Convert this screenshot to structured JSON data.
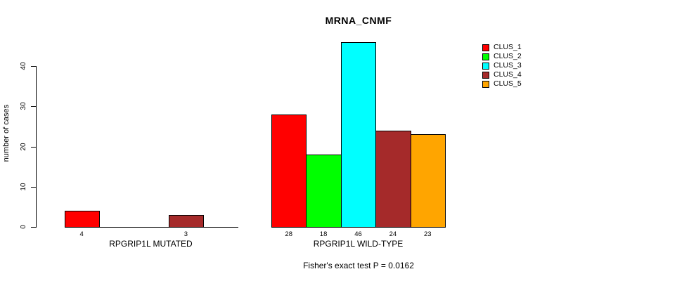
{
  "title": "MRNA_CNMF",
  "subtitle": "Fisher's exact test P = 0.0162",
  "chart_data": {
    "type": "bar",
    "title": "MRNA_CNMF",
    "xlabel": "",
    "ylabel": "number of cases",
    "ylim": [
      0,
      46
    ],
    "yticks": [
      0,
      10,
      20,
      30,
      40
    ],
    "grid": false,
    "legend_position": "top-right",
    "series": [
      {
        "name": "CLUS_1",
        "color": "#FF0000"
      },
      {
        "name": "CLUS_2",
        "color": "#00FF00"
      },
      {
        "name": "CLUS_3",
        "color": "#00FFFF"
      },
      {
        "name": "CLUS_4",
        "color": "#A52A2A"
      },
      {
        "name": "CLUS_5",
        "color": "#FFA500"
      }
    ],
    "groups": [
      {
        "label": "RPGRIP1L MUTATED",
        "values": [
          4,
          0,
          0,
          3,
          0
        ]
      },
      {
        "label": "RPGRIP1L WILD-TYPE",
        "values": [
          28,
          18,
          46,
          24,
          23
        ]
      }
    ],
    "annotation": "Fisher's exact test P = 0.0162"
  }
}
